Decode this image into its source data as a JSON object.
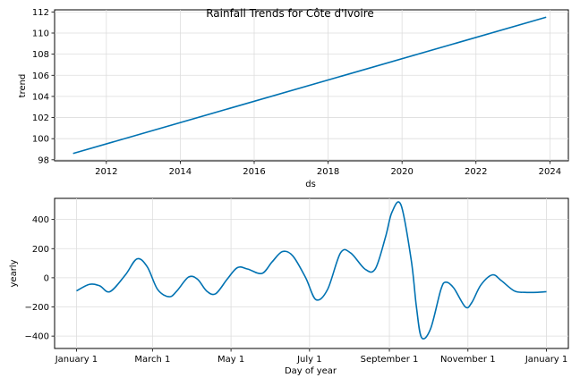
{
  "chart_data": [
    {
      "type": "line",
      "title": "Rainfall Trends for Côte d'Ivoire",
      "xlabel": "ds",
      "ylabel": "trend",
      "x_ticks": [
        "2012",
        "2014",
        "2016",
        "2018",
        "2020",
        "2022",
        "2024"
      ],
      "y_ticks": [
        "98",
        "100",
        "102",
        "104",
        "106",
        "108",
        "110",
        "112"
      ],
      "xlim": [
        2010.6,
        2024.5
      ],
      "ylim": [
        97.9,
        112.2
      ],
      "grid": true,
      "line_color": "#0072B2",
      "series": [
        {
          "x": [
            2011.1,
            2023.9
          ],
          "y": [
            98.6,
            111.5
          ]
        }
      ]
    },
    {
      "type": "line",
      "title": "",
      "xlabel": "Day of year",
      "ylabel": "yearly",
      "x_ticks": [
        "January 1",
        "March 1",
        "May 1",
        "July 1",
        "September 1",
        "November 1",
        "January 1"
      ],
      "x_tick_days": [
        0,
        59,
        120,
        181,
        243,
        304,
        365
      ],
      "y_ticks": [
        "−400",
        "−200",
        "0",
        "200",
        "400"
      ],
      "y_tick_values": [
        -400,
        -200,
        0,
        200,
        400
      ],
      "xlim": [
        -17,
        382
      ],
      "ylim": [
        -485,
        545
      ],
      "grid": true,
      "line_color": "#0072B2",
      "series": [
        {
          "x": [
            0,
            10,
            18,
            26,
            38,
            47,
            55,
            63,
            72,
            78,
            87,
            94,
            101,
            108,
            117,
            125,
            133,
            144,
            152,
            160,
            168,
            178,
            186,
            195,
            205,
            213,
            224,
            232,
            240,
            245,
            252,
            260,
            264,
            268,
            275,
            283,
            287,
            293,
            302,
            307,
            314,
            323,
            330,
            340,
            348,
            358,
            365
          ],
          "y": [
            -90,
            -45,
            -55,
            -95,
            20,
            130,
            75,
            -80,
            -130,
            -90,
            5,
            -10,
            -90,
            -110,
            -10,
            70,
            60,
            30,
            110,
            180,
            150,
            0,
            -150,
            -80,
            170,
            170,
            60,
            60,
            280,
            450,
            500,
            120,
            -200,
            -410,
            -350,
            -80,
            -30,
            -70,
            -200,
            -170,
            -50,
            20,
            -20,
            -90,
            -100,
            -100,
            -95
          ]
        }
      ]
    }
  ]
}
